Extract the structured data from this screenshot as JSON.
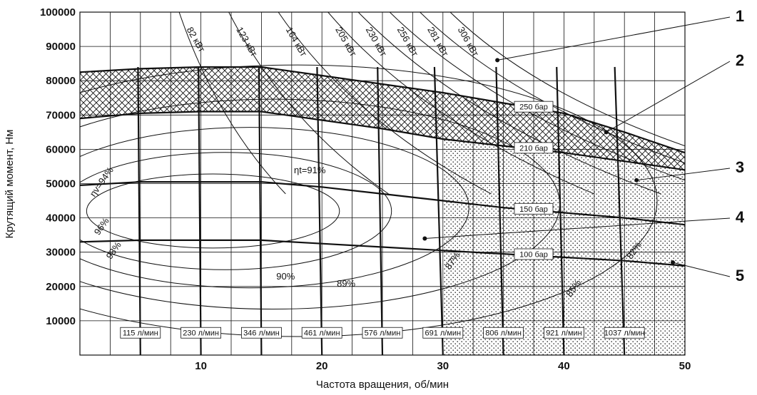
{
  "chart_data": {
    "type": "line",
    "xlabel": "Частота вращения, об/мин",
    "ylabel": "Крутящий момент, Нм",
    "xlim": [
      0,
      50
    ],
    "ylim": [
      0,
      100000
    ],
    "x_ticks": [
      10,
      20,
      30,
      40,
      50
    ],
    "y_ticks": [
      10000,
      20000,
      30000,
      40000,
      50000,
      60000,
      70000,
      80000,
      90000,
      100000
    ],
    "x_tick_labels": [
      "10",
      "20",
      "30",
      "40",
      "50"
    ],
    "y_tick_labels": [
      "10000",
      "20000",
      "30000",
      "40000",
      "50000",
      "60000",
      "70000",
      "80000",
      "90000",
      "100000"
    ],
    "grid": true,
    "pressure_curves": [
      {
        "label": "250 бар",
        "x": [
          0,
          5,
          10,
          15,
          20,
          25,
          30,
          35,
          40,
          45,
          50
        ],
        "y": [
          82500,
          83500,
          84000,
          84000,
          81500,
          79000,
          76500,
          73500,
          70500,
          65000,
          59000
        ]
      },
      {
        "label": "210 бар",
        "x": [
          0,
          5,
          10,
          15,
          20,
          25,
          30,
          35,
          40,
          45,
          50
        ],
        "y": [
          69000,
          70500,
          71000,
          71000,
          68500,
          66000,
          63000,
          61000,
          59000,
          56500,
          54000
        ]
      },
      {
        "label": "150 бар",
        "x": [
          0,
          5,
          10,
          15,
          20,
          25,
          30,
          35,
          40,
          45,
          50
        ],
        "y": [
          49500,
          50500,
          50500,
          50500,
          49000,
          47000,
          45000,
          43000,
          41500,
          40000,
          38000
        ]
      },
      {
        "label": "100 бар",
        "x": [
          0,
          5,
          10,
          15,
          20,
          25,
          30,
          35,
          40,
          45,
          50
        ],
        "y": [
          33000,
          33500,
          33500,
          33500,
          32500,
          31500,
          30500,
          29500,
          28500,
          27500,
          26000
        ]
      }
    ],
    "flow_lines": [
      {
        "label": "115 л/мин",
        "x": [
          5,
          4.8
        ]
      },
      {
        "label": "230 л/мин",
        "x": [
          10,
          9.8
        ]
      },
      {
        "label": "346 л/мин",
        "x": [
          15,
          14.8
        ]
      },
      {
        "label": "461 л/мин",
        "x": [
          20,
          19.6
        ]
      },
      {
        "label": "576 л/мин",
        "x": [
          25,
          24.6
        ]
      },
      {
        "label": "691 л/мин",
        "x": [
          30,
          29.3
        ]
      },
      {
        "label": "806 л/мин",
        "x": [
          35,
          34.4
        ]
      },
      {
        "label": "921 л/мин",
        "x": [
          40,
          39.4
        ]
      },
      {
        "label": "1037 л/мин",
        "x": [
          45,
          44.2
        ]
      }
    ],
    "power_curves": [
      {
        "label": "82 кВт",
        "x": [
          8.2,
          17
        ],
        "y": [
          100000,
          47000
        ]
      },
      {
        "label": "123 кВт",
        "x": [
          12.3,
          25.5
        ],
        "y": [
          100000,
          47000
        ]
      },
      {
        "label": "164 кВт",
        "x": [
          16.4,
          34
        ],
        "y": [
          100000,
          47000
        ]
      },
      {
        "label": "205 кВт",
        "x": [
          20.5,
          42.5
        ],
        "y": [
          100000,
          47000
        ]
      },
      {
        "label": "230 кВт",
        "x": [
          23,
          48
        ],
        "y": [
          100000,
          47000
        ]
      },
      {
        "label": "256 кВт",
        "x": [
          25.6,
          50
        ],
        "y": [
          100000,
          51000
        ]
      },
      {
        "label": "281 кВт",
        "x": [
          28.1,
          50
        ],
        "y": [
          100000,
          56000
        ]
      },
      {
        "label": "306 кВт",
        "x": [
          30.6,
          50
        ],
        "y": [
          100000,
          61000
        ]
      }
    ],
    "efficiency_labels": [
      "ηt=91%",
      "90%",
      "89%",
      "87%",
      "85%",
      "82%",
      "ηv=94%",
      "96%",
      "98%"
    ],
    "zones": {
      "crosshatch": "max pressure band",
      "dotted": "x >= 30"
    },
    "callouts": [
      "1",
      "2",
      "3",
      "4",
      "5"
    ]
  },
  "colors": {
    "line": "#111111",
    "grid": "#111111",
    "background": "#ffffff"
  }
}
